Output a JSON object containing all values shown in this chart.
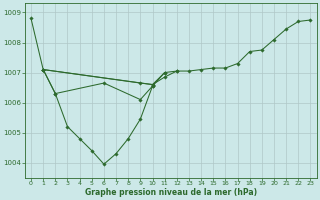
{
  "background_color": "#cce8e8",
  "grid_color": "#b0c8c8",
  "line_color": "#2d6a2d",
  "title": "Graphe pression niveau de la mer (hPa)",
  "xlim": [
    -0.5,
    23.5
  ],
  "ylim": [
    1003.5,
    1009.3
  ],
  "yticks": [
    1004,
    1005,
    1006,
    1007,
    1008,
    1009
  ],
  "xticks": [
    0,
    1,
    2,
    3,
    4,
    5,
    6,
    7,
    8,
    9,
    10,
    11,
    12,
    13,
    14,
    15,
    16,
    17,
    18,
    19,
    20,
    21,
    22,
    23
  ],
  "main_series": [
    [
      0,
      1008.8
    ],
    [
      1,
      1007.1
    ],
    [
      2,
      1006.3
    ],
    [
      3,
      1005.2
    ],
    [
      4,
      1004.8
    ],
    [
      5,
      1004.4
    ],
    [
      6,
      1003.95
    ],
    [
      7,
      1004.3
    ],
    [
      8,
      1004.8
    ],
    [
      9,
      1005.45
    ],
    [
      10,
      1006.55
    ],
    [
      11,
      1007.0
    ],
    [
      12,
      1007.05
    ],
    [
      13,
      1007.05
    ],
    [
      14,
      1007.1
    ],
    [
      15,
      1007.15
    ],
    [
      16,
      1007.15
    ],
    [
      17,
      1007.3
    ],
    [
      18,
      1007.7
    ],
    [
      19,
      1007.75
    ],
    [
      20,
      1008.1
    ],
    [
      21,
      1008.45
    ],
    [
      22,
      1008.7
    ],
    [
      23,
      1008.75
    ]
  ],
  "cross_line1": [
    [
      1,
      1007.1
    ],
    [
      2,
      1006.3
    ],
    [
      6,
      1006.65
    ],
    [
      9,
      1006.1
    ],
    [
      10,
      1006.55
    ]
  ],
  "cross_line2": [
    [
      1,
      1007.1
    ],
    [
      9,
      1006.65
    ],
    [
      10,
      1006.6
    ],
    [
      11,
      1007.0
    ]
  ],
  "cross_line3": [
    [
      1,
      1007.1
    ],
    [
      10,
      1006.6
    ],
    [
      11,
      1006.85
    ],
    [
      12,
      1007.05
    ]
  ]
}
